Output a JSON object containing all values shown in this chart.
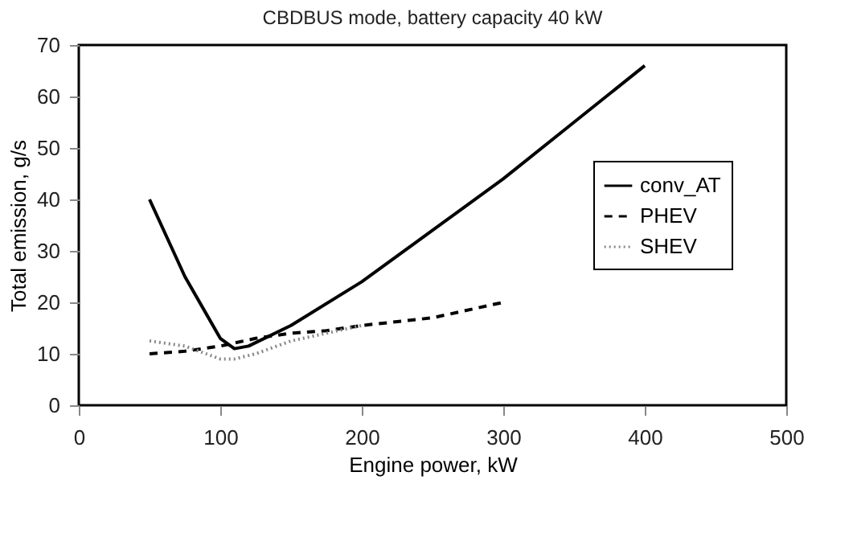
{
  "chart_data": {
    "type": "line",
    "title": "CBDBUS mode, battery capacity 40 kW",
    "xlabel": "Engine power, kW",
    "ylabel": "Total emission, g/s",
    "xlim": [
      0,
      500
    ],
    "xticks": [
      0,
      100,
      200,
      300,
      400,
      500
    ],
    "ylim": [
      0,
      70
    ],
    "yticks": [
      0,
      10,
      20,
      30,
      40,
      50,
      60,
      70
    ],
    "grid": false,
    "legend": "right",
    "marker": "none",
    "series": [
      {
        "name": "conv_AT",
        "color": "#000000",
        "line_style": "solid",
        "x": [
          50,
          75,
          100,
          110,
          120,
          150,
          200,
          250,
          300,
          350,
          400
        ],
        "values": [
          40,
          25,
          13,
          11,
          11.5,
          15.5,
          24,
          34,
          44,
          55,
          66
        ]
      },
      {
        "name": "PHEV",
        "color": "#000000",
        "line_style": "dashed",
        "x": [
          50,
          75,
          100,
          125,
          150,
          175,
          200,
          250,
          300
        ],
        "values": [
          10,
          10.5,
          11.5,
          13,
          14,
          14.5,
          15.5,
          17,
          20
        ]
      },
      {
        "name": "SHEV",
        "color": "#888888",
        "line_style": "dotted",
        "x": [
          50,
          75,
          100,
          110,
          125,
          150,
          175,
          200
        ],
        "values": [
          12.5,
          11.5,
          9,
          9,
          10,
          12.5,
          14,
          15.5
        ]
      }
    ]
  }
}
